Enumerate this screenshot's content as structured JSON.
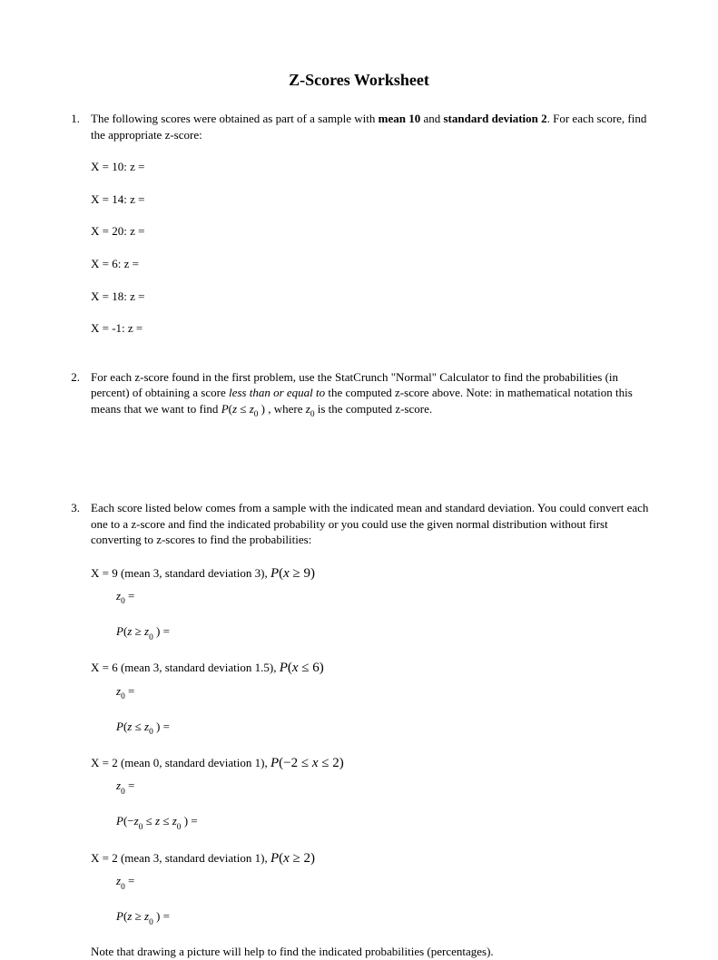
{
  "title": "Z-Scores Worksheet",
  "p1": {
    "num": "1.",
    "intro_a": "The following scores were obtained as part of a sample with ",
    "mean": "mean 10",
    "intro_b": " and ",
    "sd": "standard deviation 2",
    "intro_c": ". For each score, find the appropriate z-score:",
    "items": [
      "X = 10: z =",
      "X = 14: z =",
      "X = 20: z =",
      "X = 6: z =",
      "X = 18: z =",
      "X = -1: z ="
    ]
  },
  "p2": {
    "num": "2.",
    "t1": "For each z-score found in the first problem, use the StatCrunch \"Normal\" Calculator to find the probabilities (in percent) of obtaining a score ",
    "less": "less than or equal to",
    "t2": " the computed z-score above. Note: in mathematical notation this means that we want to find  ",
    "expr_P": "P",
    "expr_open": "(",
    "expr_z": "z",
    "expr_le": " ≤ ",
    "expr_z0_z": "z",
    "expr_z0_0": "0",
    "expr_close": " )",
    "t3": " , where  ",
    "where_z": "z",
    "where_0": "0",
    "t4": "  is the computed  z-score."
  },
  "p3": {
    "num": "3.",
    "intro": "Each score listed below comes from a sample with the indicated mean and standard deviation. You could convert each one to a z-score and find the indicated probability or you could use the given normal distribution without first converting to z-scores to find the probabilities:",
    "a": {
      "lead": "X = 9 (mean 3, standard deviation 3),  ",
      "P": "P",
      "open": "(",
      "x": "x",
      "ge": " ≥ ",
      "val": "9",
      "close": ")",
      "z0_z": "z",
      "z0_0": "0",
      "z0_eq": "  =",
      "pz_P": "P",
      "pz_open": "(",
      "pz_z": "z",
      "pz_ge": " ≥ ",
      "pz_z0z": "z",
      "pz_z00": "0",
      "pz_close": " )",
      "pz_eq": "  ="
    },
    "b": {
      "lead": "X = 6 (mean 3, standard deviation 1.5),  ",
      "P": "P",
      "open": "(",
      "x": "x",
      "le": " ≤ ",
      "val": "6",
      "close": ")",
      "z0_z": "z",
      "z0_0": "0",
      "z0_eq": " =",
      "pz_P": "P",
      "pz_open": "(",
      "pz_z": "z",
      "pz_le": " ≤ ",
      "pz_z0z": "z",
      "pz_z00": "0",
      "pz_close": " )",
      "pz_eq": "  ="
    },
    "c": {
      "lead": "X = 2 (mean 0, standard deviation 1),  ",
      "P": "P",
      "open": "(",
      "neg2": "−2",
      "le1": " ≤ ",
      "x": "x",
      "le2": " ≤ ",
      "val": "2",
      "close": ")",
      "z0_z": "z",
      "z0_0": "0",
      "z0_eq": "  =",
      "pz_P": "P",
      "pz_open": "(",
      "pz_neg": "−",
      "pz_z1z": "z",
      "pz_z10": "0",
      "pz_le1": " ≤ ",
      "pz_z": "z",
      "pz_le2": " ≤ ",
      "pz_z2z": "z",
      "pz_z20": "0",
      "pz_close": " )",
      "pz_eq": "  ="
    },
    "d": {
      "lead": "X = 2 (mean 3, standard deviation 1),  ",
      "P": "P",
      "open": "(",
      "x": "x",
      "ge": " ≥ ",
      "val": "2",
      "close": ")",
      "z0_z": "z",
      "z0_0": "0",
      "z0_eq": "  =",
      "pz_P": "P",
      "pz_open": "(",
      "pz_z": "z",
      "pz_ge": " ≥ ",
      "pz_z0z": "z",
      "pz_z00": "0",
      "pz_close": " )",
      "pz_eq": "  ="
    },
    "note": "Note that drawing a picture will help to find the indicated probabilities (percentages)."
  }
}
